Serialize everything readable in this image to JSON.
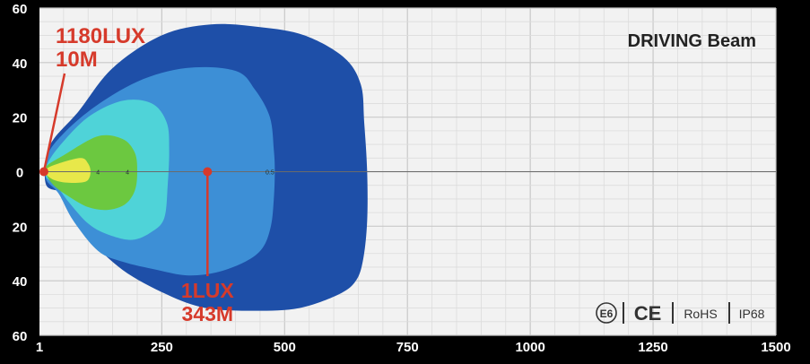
{
  "chart_data": {
    "type": "area",
    "title": "DRIVING Beam",
    "xlabel": "",
    "ylabel": "",
    "xlim": [
      1,
      1500
    ],
    "ylim_abs": [
      0,
      60
    ],
    "x_ticks": [
      "1",
      "250",
      "500",
      "750",
      "1000",
      "1250",
      "1500"
    ],
    "y_ticks": [
      "60",
      "40",
      "20",
      "0",
      "20",
      "40",
      "60"
    ],
    "grid": true,
    "zones": [
      {
        "name": "outer",
        "color": "#1e4fa8",
        "points": [
          [
            15,
            -5
          ],
          [
            30,
            -12
          ],
          [
            80,
            -22
          ],
          [
            150,
            -38
          ],
          [
            250,
            -50
          ],
          [
            350,
            -54
          ],
          [
            450,
            -53
          ],
          [
            540,
            -50
          ],
          [
            620,
            -42
          ],
          [
            655,
            -32
          ],
          [
            662,
            -18
          ],
          [
            668,
            0
          ],
          [
            668,
            18
          ],
          [
            660,
            32
          ],
          [
            645,
            40
          ],
          [
            610,
            45
          ],
          [
            530,
            50
          ],
          [
            440,
            51
          ],
          [
            340,
            50
          ],
          [
            260,
            45
          ],
          [
            170,
            36
          ],
          [
            100,
            24
          ],
          [
            70,
            15
          ],
          [
            50,
            8
          ],
          [
            15,
            5
          ]
        ]
      },
      {
        "name": "mid-blue",
        "color": "#3d8fd6",
        "points": [
          [
            15,
            -3
          ],
          [
            30,
            -10
          ],
          [
            100,
            -22
          ],
          [
            200,
            -33
          ],
          [
            300,
            -38
          ],
          [
            400,
            -37
          ],
          [
            440,
            -30
          ],
          [
            470,
            -20
          ],
          [
            478,
            -8
          ],
          [
            480,
            0
          ],
          [
            478,
            10
          ],
          [
            472,
            20
          ],
          [
            455,
            28
          ],
          [
            420,
            33
          ],
          [
            360,
            37
          ],
          [
            300,
            38
          ],
          [
            240,
            36
          ],
          [
            170,
            33
          ],
          [
            120,
            29
          ],
          [
            70,
            18
          ],
          [
            40,
            8
          ],
          [
            15,
            3
          ]
        ]
      },
      {
        "name": "cyan",
        "color": "#4fd3d8",
        "points": [
          [
            15,
            -2
          ],
          [
            40,
            -9
          ],
          [
            100,
            -20
          ],
          [
            170,
            -26
          ],
          [
            230,
            -25
          ],
          [
            260,
            -18
          ],
          [
            265,
            -8
          ],
          [
            262,
            5
          ],
          [
            255,
            17
          ],
          [
            230,
            22
          ],
          [
            190,
            25
          ],
          [
            140,
            23
          ],
          [
            100,
            19
          ],
          [
            60,
            11
          ],
          [
            35,
            5
          ],
          [
            15,
            2
          ]
        ]
      },
      {
        "name": "green",
        "color": "#6cc840",
        "points": [
          [
            15,
            -2
          ],
          [
            50,
            -6
          ],
          [
            120,
            -13
          ],
          [
            170,
            -12
          ],
          [
            195,
            -7
          ],
          [
            200,
            0
          ],
          [
            195,
            7
          ],
          [
            175,
            12
          ],
          [
            140,
            14
          ],
          [
            100,
            13
          ],
          [
            60,
            9
          ],
          [
            30,
            5
          ],
          [
            15,
            1
          ]
        ]
      },
      {
        "name": "yellow",
        "color": "#e8e84a",
        "points": [
          [
            15,
            -1
          ],
          [
            40,
            -3
          ],
          [
            85,
            -5
          ],
          [
            100,
            -3
          ],
          [
            105,
            0
          ],
          [
            100,
            3
          ],
          [
            85,
            4
          ],
          [
            55,
            4
          ],
          [
            30,
            3
          ],
          [
            15,
            1
          ]
        ]
      }
    ],
    "annotations": [
      {
        "label": "1180LUX",
        "sublabel": "10M",
        "x": 10,
        "y": 0
      },
      {
        "label": "1LUX",
        "sublabel": "343M",
        "x": 343,
        "y": 0
      }
    ],
    "contour_marks": [
      {
        "x": 120,
        "label": "4"
      },
      {
        "x": 180,
        "label": "4"
      },
      {
        "x": 340,
        "label": "1"
      },
      {
        "x": 470,
        "label": "0.5"
      }
    ]
  },
  "badges": {
    "e_mark": "E6",
    "ce": "CE",
    "rohs": "RoHS",
    "ip": "IP68"
  },
  "colors": {
    "background": "#000000",
    "plot_bg": "#f2f2f2",
    "grid": "#d4d4d4",
    "annotation": "#d63a2b",
    "title": "#222222"
  }
}
